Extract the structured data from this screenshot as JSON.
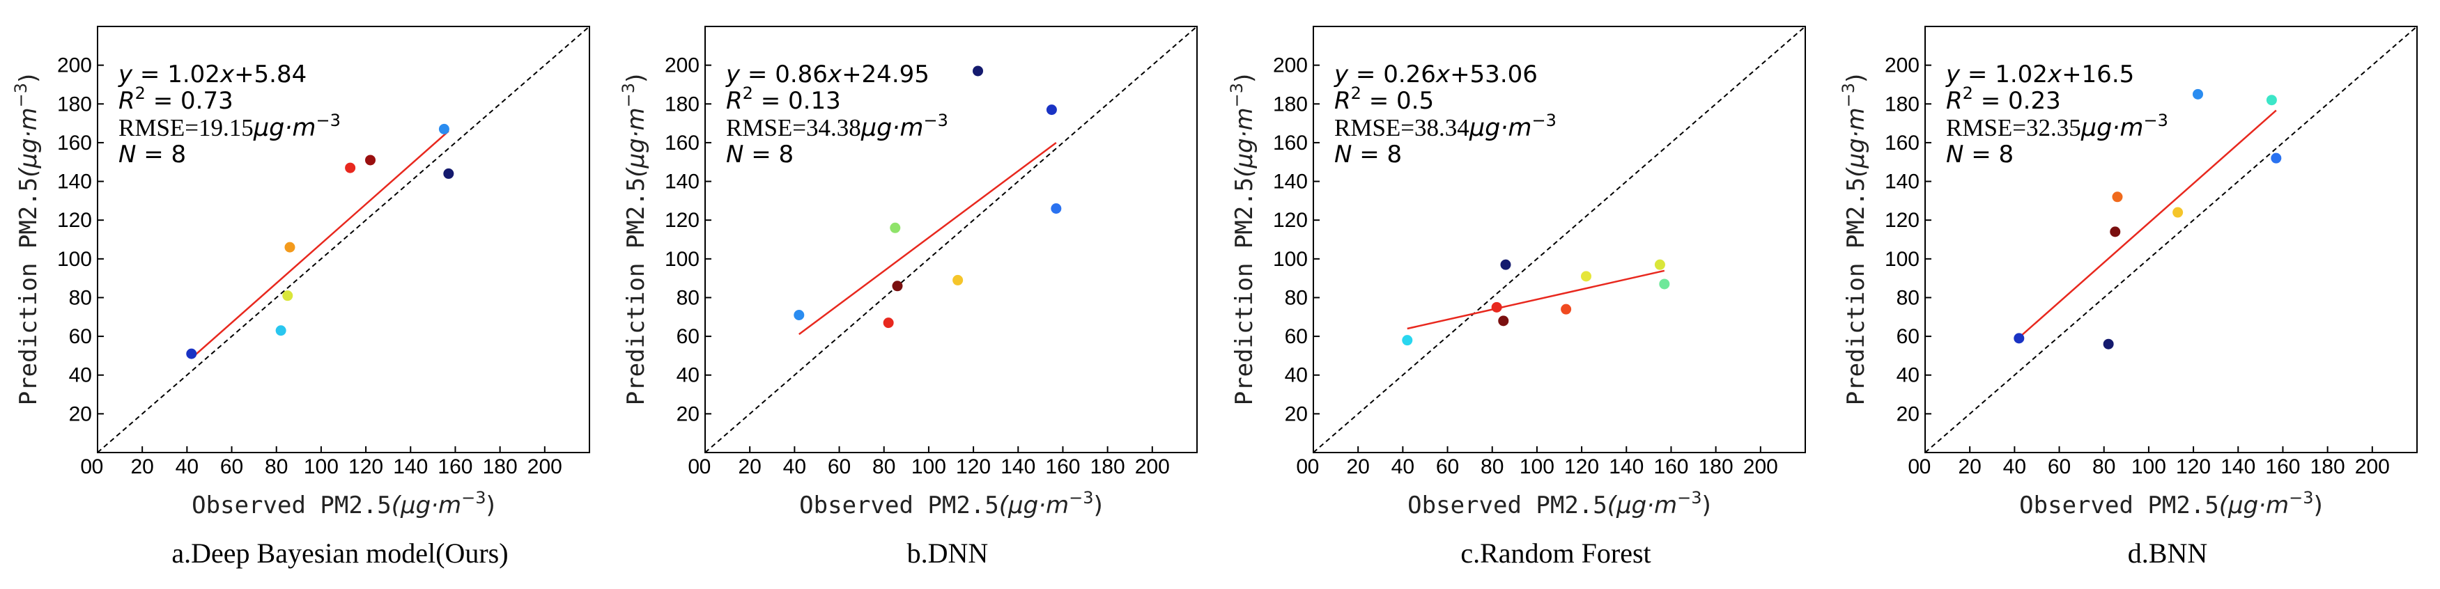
{
  "chart_data": [
    {
      "type": "scatter",
      "caption": "a.Deep Bayesian model(Ours)",
      "xlabel": "Observed PM2.5",
      "ylabel": "Prediction PM2.5",
      "unit": "(μg·m⁻³)",
      "xlim": [
        0,
        220
      ],
      "ylim": [
        0,
        220
      ],
      "xticks": [
        0,
        20,
        40,
        60,
        80,
        100,
        120,
        140,
        160,
        180,
        200
      ],
      "yticks": [
        0,
        20,
        40,
        60,
        80,
        100,
        120,
        140,
        160,
        180,
        200
      ],
      "fit": {
        "slope": 1.02,
        "intercept": 5.84,
        "x_range": [
          42,
          157
        ]
      },
      "stats": {
        "eq": "y = 1.02x+5.84",
        "r2": "R² = 0.73",
        "rmse": "RMSE=19.15μg·m⁻³",
        "n": "N = 8"
      },
      "points": [
        {
          "x": 42,
          "y": 51,
          "color": "#1a33c4"
        },
        {
          "x": 82,
          "y": 63,
          "color": "#29c6ef"
        },
        {
          "x": 85,
          "y": 81,
          "color": "#d9e63a"
        },
        {
          "x": 86,
          "y": 106,
          "color": "#f39a1c"
        },
        {
          "x": 113,
          "y": 147,
          "color": "#e8281e"
        },
        {
          "x": 122,
          "y": 151,
          "color": "#9a0f0f"
        },
        {
          "x": 155,
          "y": 167,
          "color": "#2a8cf0"
        },
        {
          "x": 157,
          "y": 144,
          "color": "#141a6e"
        }
      ]
    },
    {
      "type": "scatter",
      "caption": "b.DNN",
      "xlabel": "Observed PM2.5",
      "ylabel": "Prediction PM2.5",
      "unit": "(μg·m⁻³)",
      "xlim": [
        0,
        220
      ],
      "ylim": [
        0,
        220
      ],
      "xticks": [
        0,
        20,
        40,
        60,
        80,
        100,
        120,
        140,
        160,
        180,
        200
      ],
      "yticks": [
        0,
        20,
        40,
        60,
        80,
        100,
        120,
        140,
        160,
        180,
        200
      ],
      "fit": {
        "slope": 0.86,
        "intercept": 24.95,
        "x_range": [
          42,
          157
        ]
      },
      "stats": {
        "eq": "y = 0.86x+24.95",
        "r2": "R² = 0.13",
        "rmse": "RMSE=34.38μg·m⁻³",
        "n": "N = 8"
      },
      "points": [
        {
          "x": 42,
          "y": 71,
          "color": "#2a8cf0"
        },
        {
          "x": 82,
          "y": 67,
          "color": "#e8281e"
        },
        {
          "x": 85,
          "y": 116,
          "color": "#8fe36a"
        },
        {
          "x": 86,
          "y": 86,
          "color": "#7a0f0f"
        },
        {
          "x": 113,
          "y": 89,
          "color": "#f5c52a"
        },
        {
          "x": 122,
          "y": 197,
          "color": "#141a6e"
        },
        {
          "x": 155,
          "y": 177,
          "color": "#1a33c4"
        },
        {
          "x": 157,
          "y": 126,
          "color": "#2a72f0"
        }
      ]
    },
    {
      "type": "scatter",
      "caption": "c.Random Forest",
      "xlabel": "Observed PM2.5",
      "ylabel": "Prediction PM2.5",
      "unit": "(μg·m⁻³)",
      "xlim": [
        0,
        220
      ],
      "ylim": [
        0,
        220
      ],
      "xticks": [
        0,
        20,
        40,
        60,
        80,
        100,
        120,
        140,
        160,
        180,
        200
      ],
      "yticks": [
        0,
        20,
        40,
        60,
        80,
        100,
        120,
        140,
        160,
        180,
        200
      ],
      "fit": {
        "slope": 0.26,
        "intercept": 53.06,
        "x_range": [
          42,
          157
        ]
      },
      "stats": {
        "eq": "y = 0.26x+53.06",
        "r2": "R² = 0.5",
        "rmse": "RMSE=38.34μg·m⁻³",
        "n": "N = 8"
      },
      "points": [
        {
          "x": 42,
          "y": 58,
          "color": "#29d6ef"
        },
        {
          "x": 82,
          "y": 75,
          "color": "#e8281e"
        },
        {
          "x": 85,
          "y": 68,
          "color": "#7a0f0f"
        },
        {
          "x": 86,
          "y": 97,
          "color": "#141a6e"
        },
        {
          "x": 113,
          "y": 74,
          "color": "#f04a20"
        },
        {
          "x": 122,
          "y": 91,
          "color": "#e6e63a"
        },
        {
          "x": 155,
          "y": 97,
          "color": "#d9e63a"
        },
        {
          "x": 157,
          "y": 87,
          "color": "#6ee89a"
        }
      ]
    },
    {
      "type": "scatter",
      "caption": "d.BNN",
      "xlabel": "Observed PM2.5",
      "ylabel": "Prediction PM2.5",
      "unit": "(μg·m⁻³)",
      "xlim": [
        0,
        220
      ],
      "ylim": [
        0,
        220
      ],
      "xticks": [
        0,
        20,
        40,
        60,
        80,
        100,
        120,
        140,
        160,
        180,
        200
      ],
      "yticks": [
        0,
        20,
        40,
        60,
        80,
        100,
        120,
        140,
        160,
        180,
        200
      ],
      "fit": {
        "slope": 1.02,
        "intercept": 16.5,
        "x_range": [
          42,
          157
        ]
      },
      "stats": {
        "eq": "y = 1.02x+16.5",
        "r2": "R² = 0.23",
        "rmse": "RMSE=32.35μg·m⁻³",
        "n": "N = 8"
      },
      "points": [
        {
          "x": 42,
          "y": 59,
          "color": "#1a33c4"
        },
        {
          "x": 82,
          "y": 56,
          "color": "#141a6e"
        },
        {
          "x": 85,
          "y": 114,
          "color": "#7a0f0f"
        },
        {
          "x": 86,
          "y": 132,
          "color": "#f06a1c"
        },
        {
          "x": 113,
          "y": 124,
          "color": "#f5c52a"
        },
        {
          "x": 122,
          "y": 185,
          "color": "#2a8cf0"
        },
        {
          "x": 155,
          "y": 182,
          "color": "#3ce6c8"
        },
        {
          "x": 157,
          "y": 152,
          "color": "#2a72f0"
        }
      ]
    }
  ],
  "colors": {
    "fit_line": "#e8281e",
    "identity_line": "#000000",
    "axes": "#000000"
  }
}
